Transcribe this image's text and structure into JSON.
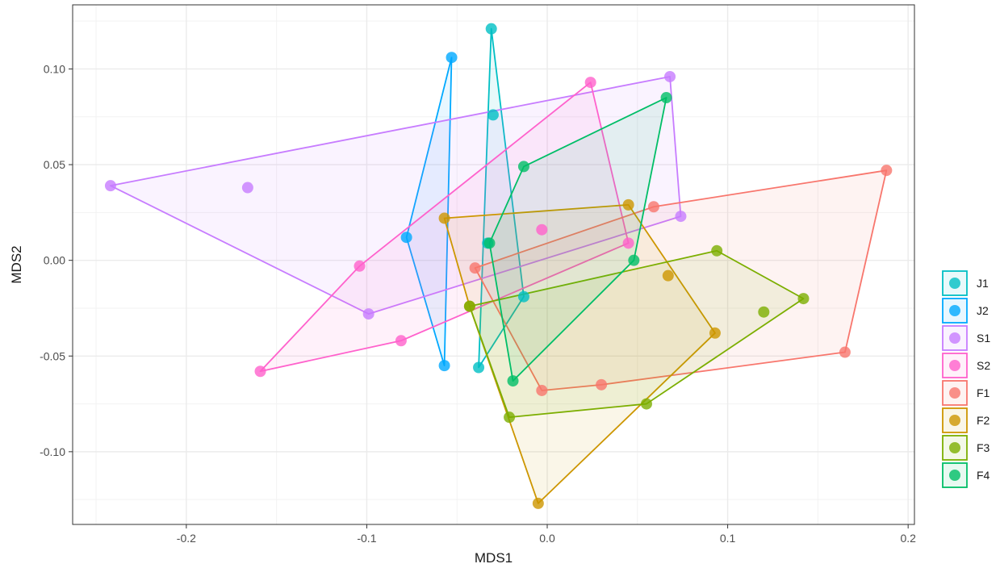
{
  "chart_data": {
    "type": "scatter",
    "title": "",
    "xlabel": "MDS1",
    "ylabel": "MDS2",
    "xlim": [
      -0.263,
      0.2035
    ],
    "ylim": [
      -0.138,
      0.1335
    ],
    "x_ticks": [
      -0.2,
      -0.1,
      0.0,
      0.1,
      0.2
    ],
    "x_tick_labels": [
      "-0.2",
      "-0.1",
      "0.0",
      "0.1",
      "0.2"
    ],
    "y_ticks": [
      -0.1,
      -0.05,
      0.0,
      0.05,
      0.1
    ],
    "y_tick_labels": [
      "-0.10",
      "-0.05",
      "0.00",
      "0.05",
      "0.10"
    ],
    "grid": true,
    "legend_position": "right",
    "hulls": true,
    "series": [
      {
        "name": "J1",
        "color": "#00BFC4",
        "points": [
          [
            -0.031,
            0.121
          ],
          [
            -0.03,
            0.076
          ],
          [
            -0.033,
            0.009
          ],
          [
            -0.013,
            -0.019
          ],
          [
            -0.038,
            -0.056
          ]
        ]
      },
      {
        "name": "J2",
        "color": "#00A9FF",
        "points": [
          [
            -0.053,
            0.106
          ],
          [
            -0.078,
            0.012
          ],
          [
            -0.057,
            -0.055
          ]
        ]
      },
      {
        "name": "S1",
        "color": "#C77CFF",
        "points": [
          [
            -0.242,
            0.039
          ],
          [
            -0.166,
            0.038
          ],
          [
            -0.099,
            -0.028
          ],
          [
            0.068,
            0.096
          ],
          [
            0.074,
            0.023
          ]
        ]
      },
      {
        "name": "S2",
        "color": "#FF61CC",
        "points": [
          [
            0.024,
            0.093
          ],
          [
            -0.104,
            -0.003
          ],
          [
            -0.159,
            -0.058
          ],
          [
            -0.081,
            -0.042
          ],
          [
            -0.003,
            0.016
          ],
          [
            0.045,
            0.009
          ]
        ]
      },
      {
        "name": "F1",
        "color": "#F8766D",
        "points": [
          [
            0.188,
            0.047
          ],
          [
            0.059,
            0.028
          ],
          [
            -0.04,
            -0.004
          ],
          [
            -0.003,
            -0.068
          ],
          [
            0.03,
            -0.065
          ],
          [
            0.165,
            -0.048
          ]
        ]
      },
      {
        "name": "F2",
        "color": "#CD9600",
        "points": [
          [
            -0.057,
            0.022
          ],
          [
            0.045,
            0.029
          ],
          [
            0.067,
            -0.008
          ],
          [
            0.093,
            -0.038
          ],
          [
            -0.005,
            -0.127
          ],
          [
            -0.043,
            -0.024
          ]
        ]
      },
      {
        "name": "F3",
        "color": "#7CAE00",
        "points": [
          [
            0.094,
            0.005
          ],
          [
            0.142,
            -0.02
          ],
          [
            0.12,
            -0.027
          ],
          [
            0.055,
            -0.075
          ],
          [
            -0.021,
            -0.082
          ],
          [
            -0.043,
            -0.024
          ]
        ]
      },
      {
        "name": "F4",
        "color": "#00BE67",
        "points": [
          [
            0.066,
            0.085
          ],
          [
            -0.013,
            0.049
          ],
          [
            -0.032,
            0.009
          ],
          [
            -0.019,
            -0.063
          ],
          [
            0.048,
            0.0
          ]
        ]
      }
    ]
  }
}
